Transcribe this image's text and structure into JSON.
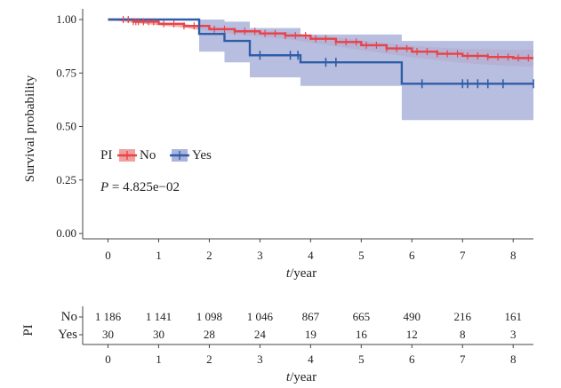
{
  "chart_data": {
    "type": "line",
    "subtype": "kaplan-meier",
    "xlabel": "t/year",
    "ylabel": "Survival probability",
    "xlim": [
      -0.5,
      8.4
    ],
    "ylim": [
      0,
      1.0
    ],
    "x_ticks": [
      0,
      1,
      2,
      3,
      4,
      5,
      6,
      7,
      8
    ],
    "y_ticks": [
      0.0,
      0.25,
      0.5,
      0.75,
      1.0
    ],
    "y_tick_labels": [
      "0.00",
      "0.25",
      "0.50",
      "0.75",
      "1.00"
    ],
    "legend": {
      "title": "PI",
      "placement": "left-middle",
      "entries": [
        "No",
        "Yes"
      ]
    },
    "pvalue_label": "P",
    "pvalue_text": " = 4.825e−02",
    "series": [
      {
        "name": "No",
        "color": "#e8434a",
        "band_color": "#f0a0a0",
        "curve": [
          [
            0,
            1.0
          ],
          [
            0.5,
            0.99
          ],
          [
            1,
            0.98
          ],
          [
            1.5,
            0.97
          ],
          [
            2,
            0.955
          ],
          [
            2.5,
            0.945
          ],
          [
            3,
            0.935
          ],
          [
            3.5,
            0.925
          ],
          [
            4,
            0.91
          ],
          [
            4.5,
            0.895
          ],
          [
            5,
            0.88
          ],
          [
            5.5,
            0.865
          ],
          [
            6,
            0.85
          ],
          [
            6.5,
            0.84
          ],
          [
            7,
            0.83
          ],
          [
            7.5,
            0.825
          ],
          [
            8,
            0.82
          ],
          [
            8.4,
            0.82
          ]
        ],
        "lower": [
          [
            0,
            1.0
          ],
          [
            0.5,
            0.985
          ],
          [
            1,
            0.973
          ],
          [
            1.5,
            0.962
          ],
          [
            2,
            0.945
          ],
          [
            2.5,
            0.933
          ],
          [
            3,
            0.921
          ],
          [
            3.5,
            0.909
          ],
          [
            4,
            0.892
          ],
          [
            4.5,
            0.875
          ],
          [
            5,
            0.857
          ],
          [
            5.5,
            0.84
          ],
          [
            6,
            0.823
          ],
          [
            6.5,
            0.81
          ],
          [
            7,
            0.797
          ],
          [
            7.5,
            0.789
          ],
          [
            8,
            0.782
          ],
          [
            8.4,
            0.78
          ]
        ],
        "upper": [
          [
            0,
            1.0
          ],
          [
            0.5,
            0.995
          ],
          [
            1,
            0.987
          ],
          [
            1.5,
            0.978
          ],
          [
            2,
            0.965
          ],
          [
            2.5,
            0.957
          ],
          [
            3,
            0.949
          ],
          [
            3.5,
            0.941
          ],
          [
            4,
            0.928
          ],
          [
            4.5,
            0.915
          ],
          [
            5,
            0.903
          ],
          [
            5.5,
            0.89
          ],
          [
            6,
            0.877
          ],
          [
            6.5,
            0.87
          ],
          [
            7,
            0.863
          ],
          [
            7.5,
            0.861
          ],
          [
            8,
            0.858
          ],
          [
            8.4,
            0.86
          ]
        ],
        "censor_x": [
          0.3,
          0.4,
          0.5,
          0.55,
          0.6,
          0.7,
          0.8,
          0.9,
          1.1,
          1.3,
          1.5,
          1.7,
          2.1,
          2.3,
          2.5,
          2.7,
          2.9,
          3.1,
          3.3,
          3.5,
          3.7,
          3.9,
          4.1,
          4.3,
          4.5,
          4.7,
          4.9,
          5.1,
          5.3,
          5.5,
          5.7,
          5.9,
          6.1,
          6.3,
          6.5,
          6.7,
          6.9,
          7.1,
          7.3,
          7.5,
          7.7,
          7.9,
          8.1,
          8.3
        ]
      },
      {
        "name": "Yes",
        "color": "#2f5da8",
        "band_color": "#aab3db",
        "steps": [
          [
            0,
            1.0
          ],
          [
            1.8,
            0.933
          ],
          [
            2.3,
            0.9
          ],
          [
            2.8,
            0.833
          ],
          [
            3.8,
            0.8
          ],
          [
            5.8,
            0.7
          ],
          [
            8.4,
            0.7
          ]
        ],
        "band_steps": [
          [
            0,
            1.0,
            1.0
          ],
          [
            1.8,
            0.85,
            1.0
          ],
          [
            2.3,
            0.8,
            0.99
          ],
          [
            2.8,
            0.73,
            0.96
          ],
          [
            3.8,
            0.69,
            0.93
          ],
          [
            5.8,
            0.53,
            0.9
          ],
          [
            8.4,
            0.53,
            0.9
          ]
        ],
        "censor_x": [
          3.0,
          3.6,
          3.75,
          4.3,
          4.5,
          6.2,
          7.0,
          7.1,
          7.3,
          7.5,
          7.8,
          8.4
        ]
      }
    ]
  },
  "risk_table": {
    "title": "PI",
    "xlabel": "t/year",
    "rows": [
      {
        "label": "No",
        "values": [
          "1 186",
          "1 141",
          "1 098",
          "1 046",
          "867",
          "665",
          "490",
          "216",
          "161"
        ]
      },
      {
        "label": "Yes",
        "values": [
          "30",
          "30",
          "28",
          "24",
          "19",
          "16",
          "12",
          "8",
          "3"
        ]
      }
    ]
  }
}
